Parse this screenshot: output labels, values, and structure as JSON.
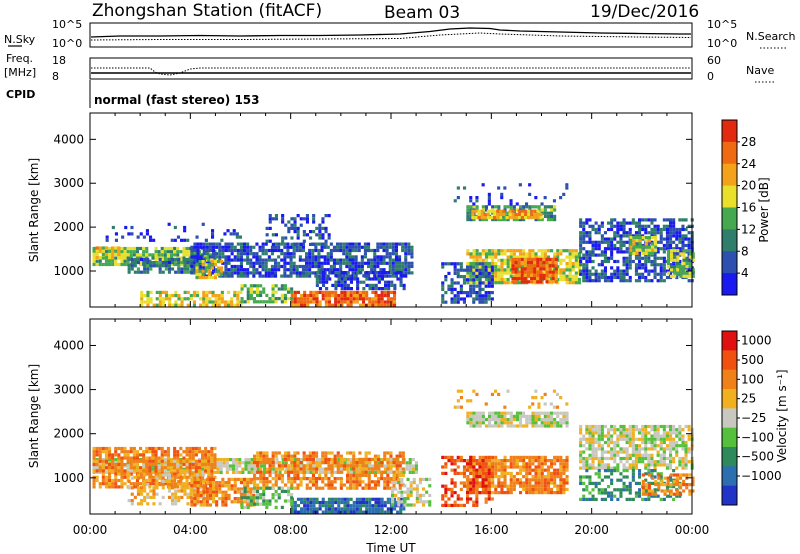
{
  "header": {
    "station": "Zhongshan Station (fitACF)",
    "beam": "Beam 03",
    "date": "19/Dec/2016"
  },
  "status_panels": {
    "noise_sky_label": "N.Sky",
    "noise_search_label": "N.Search",
    "noise_ticks_top": "10^5",
    "noise_ticks_bottom": "10^0",
    "freq_label_line1": "Freq.",
    "freq_label_line2": "[MHz]",
    "freq_ticks": [
      "18",
      "8"
    ],
    "nave_label": "Nave",
    "nave_ticks": [
      "60",
      "0"
    ],
    "cpid_label": "CPID",
    "cpid_text": "normal (fast stereo) 153"
  },
  "colors": {
    "background_gap": "#ffffff",
    "ground_scatter": "#c8c8c0",
    "power_scale": [
      "#1a1af0",
      "#2c4fb0",
      "#2f7d6b",
      "#46a84f",
      "#e8e02a",
      "#f4a21a",
      "#f06a12",
      "#e12a10"
    ],
    "velocity_scale": [
      "#2233c8",
      "#2b6fb1",
      "#2e8a5a",
      "#55c03c",
      "#c8c8c0",
      "#f0b020",
      "#f08018",
      "#f05010",
      "#e01010"
    ]
  },
  "chart_data": [
    {
      "type": "heatmap",
      "name": "power",
      "ylabel": "Slant Range [km]",
      "xlabel": "",
      "colorbar_label": "Power [dB]",
      "colorbar_ticks": [
        "28",
        "24",
        "20",
        "16",
        "12",
        "8",
        "4"
      ],
      "colorbar_range": [
        0,
        32
      ],
      "x_ticks": [
        "00:00",
        "04:00",
        "08:00",
        "12:00",
        "16:00",
        "20:00",
        "00:00"
      ],
      "x_range_hours": [
        0,
        24
      ],
      "y_ticks": [
        1000,
        2000,
        3000,
        4000
      ],
      "ylim": [
        180,
        4600
      ],
      "blobs": [
        {
          "t0": 0.1,
          "t1": 5.0,
          "r0": 1150,
          "r1": 1550,
          "v": 15,
          "d": 0.85
        },
        {
          "t0": 0.1,
          "t1": 1.2,
          "r0": 1280,
          "r1": 1560,
          "v": 20,
          "d": 0.8
        },
        {
          "t0": 1.5,
          "t1": 4.5,
          "r0": 950,
          "r1": 1300,
          "v": 8,
          "d": 0.75
        },
        {
          "t0": 4.0,
          "t1": 12.8,
          "r0": 900,
          "r1": 1650,
          "v": 6,
          "d": 0.75
        },
        {
          "t0": 4.2,
          "t1": 5.2,
          "r0": 850,
          "r1": 1250,
          "v": 18,
          "d": 0.75
        },
        {
          "t0": 2.0,
          "t1": 6.0,
          "r0": 200,
          "r1": 550,
          "v": 18,
          "d": 0.7
        },
        {
          "t0": 8.0,
          "t1": 12.2,
          "r0": 200,
          "r1": 550,
          "v": 26,
          "d": 0.9
        },
        {
          "t0": 6.0,
          "t1": 8.0,
          "r0": 300,
          "r1": 700,
          "v": 14,
          "d": 0.55
        },
        {
          "t0": 9.0,
          "t1": 12.5,
          "r0": 600,
          "r1": 1000,
          "v": 5,
          "d": 0.6
        },
        {
          "t0": 0.5,
          "t1": 6.0,
          "r0": 1700,
          "r1": 2100,
          "v": 4,
          "d": 0.15
        },
        {
          "t0": 7.0,
          "t1": 9.5,
          "r0": 1600,
          "r1": 2300,
          "v": 5,
          "d": 0.35
        },
        {
          "t0": 15.0,
          "t1": 18.5,
          "r0": 2150,
          "r1": 2500,
          "v": 12,
          "d": 0.75
        },
        {
          "t0": 15.2,
          "t1": 18.0,
          "r0": 2250,
          "r1": 2400,
          "v": 21,
          "d": 0.85
        },
        {
          "t0": 15.0,
          "t1": 19.5,
          "r0": 700,
          "r1": 1500,
          "v": 18,
          "d": 0.85
        },
        {
          "t0": 16.8,
          "t1": 18.6,
          "r0": 750,
          "r1": 1300,
          "v": 27,
          "d": 0.9
        },
        {
          "t0": 14.0,
          "t1": 16.0,
          "r0": 300,
          "r1": 1200,
          "v": 6,
          "d": 0.55
        },
        {
          "t0": 19.5,
          "t1": 24.0,
          "r0": 800,
          "r1": 2200,
          "v": 6,
          "d": 0.65
        },
        {
          "t0": 21.5,
          "t1": 22.5,
          "r0": 1400,
          "r1": 1800,
          "v": 18,
          "d": 0.8
        },
        {
          "t0": 23.0,
          "t1": 24.0,
          "r0": 900,
          "r1": 1500,
          "v": 15,
          "d": 0.7
        },
        {
          "t0": 14.5,
          "t1": 19.0,
          "r0": 2500,
          "r1": 3000,
          "v": 4,
          "d": 0.15
        }
      ]
    },
    {
      "type": "heatmap",
      "name": "velocity",
      "ylabel": "Slant Range [km]",
      "xlabel": "Time UT",
      "colorbar_label": "Velocity [m s⁻¹]",
      "colorbar_ticks": [
        "1000",
        "500",
        "100",
        "25",
        "−25",
        "−100",
        "−500",
        "−1000"
      ],
      "x_ticks": [
        "00:00",
        "04:00",
        "08:00",
        "12:00",
        "16:00",
        "20:00",
        "00:00"
      ],
      "x_range_hours": [
        0,
        24
      ],
      "y_ticks": [
        1000,
        2000,
        3000,
        4000
      ],
      "ylim": [
        180,
        4600
      ],
      "blobs": [
        {
          "t0": 0.1,
          "t1": 13.0,
          "r0": 1150,
          "r1": 1450,
          "v": 4,
          "d": 0.85
        },
        {
          "t0": 0.1,
          "t1": 5.0,
          "r0": 800,
          "r1": 1700,
          "v": 6,
          "d": 0.75
        },
        {
          "t0": 1.5,
          "t1": 4.5,
          "r0": 400,
          "r1": 1100,
          "v": 5,
          "d": 0.55
        },
        {
          "t0": 4.0,
          "t1": 6.5,
          "r0": 400,
          "r1": 1000,
          "v": 6,
          "d": 0.75
        },
        {
          "t0": 6.5,
          "t1": 12.5,
          "r0": 800,
          "r1": 1600,
          "v": 6,
          "d": 0.65
        },
        {
          "t0": 8.0,
          "t1": 12.5,
          "r0": 200,
          "r1": 550,
          "v": 1,
          "d": 0.85
        },
        {
          "t0": 6.0,
          "t1": 8.0,
          "r0": 300,
          "r1": 800,
          "v": 3,
          "d": 0.55
        },
        {
          "t0": 12.0,
          "t1": 13.5,
          "r0": 400,
          "r1": 1000,
          "v": 4,
          "d": 0.6
        },
        {
          "t0": 15.0,
          "t1": 19.0,
          "r0": 2200,
          "r1": 2500,
          "v": 4,
          "d": 0.85
        },
        {
          "t0": 15.0,
          "t1": 19.0,
          "r0": 700,
          "r1": 1500,
          "v": 6,
          "d": 0.85
        },
        {
          "t0": 14.0,
          "t1": 16.0,
          "r0": 400,
          "r1": 1500,
          "v": 7,
          "d": 0.55
        },
        {
          "t0": 19.5,
          "t1": 24.0,
          "r0": 1200,
          "r1": 2200,
          "v": 4,
          "d": 0.75
        },
        {
          "t0": 19.5,
          "t1": 23.5,
          "r0": 500,
          "r1": 1200,
          "v": 2,
          "d": 0.45
        },
        {
          "t0": 22.0,
          "t1": 24.0,
          "r0": 600,
          "r1": 1100,
          "v": 6,
          "d": 0.6
        },
        {
          "t0": 14.5,
          "t1": 19.0,
          "r0": 2600,
          "r1": 3000,
          "v": 5,
          "d": 0.15
        }
      ]
    }
  ]
}
